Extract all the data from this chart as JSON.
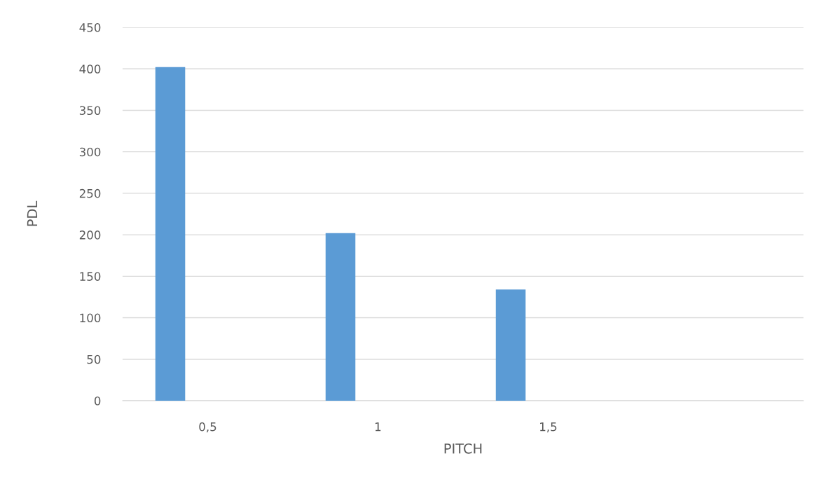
{
  "chart_data": {
    "type": "bar",
    "xlabel": "PITCH",
    "ylabel": "PDL",
    "categories": [
      "0,5",
      "1",
      "1,5",
      null
    ],
    "series": [
      {
        "color": "#5b9bd5",
        "values": [
          402,
          202,
          134,
          null
        ]
      }
    ],
    "ylim": [
      0,
      450
    ],
    "yticks": [
      0,
      50,
      100,
      150,
      200,
      250,
      300,
      350,
      400,
      450
    ],
    "grid": "y"
  }
}
